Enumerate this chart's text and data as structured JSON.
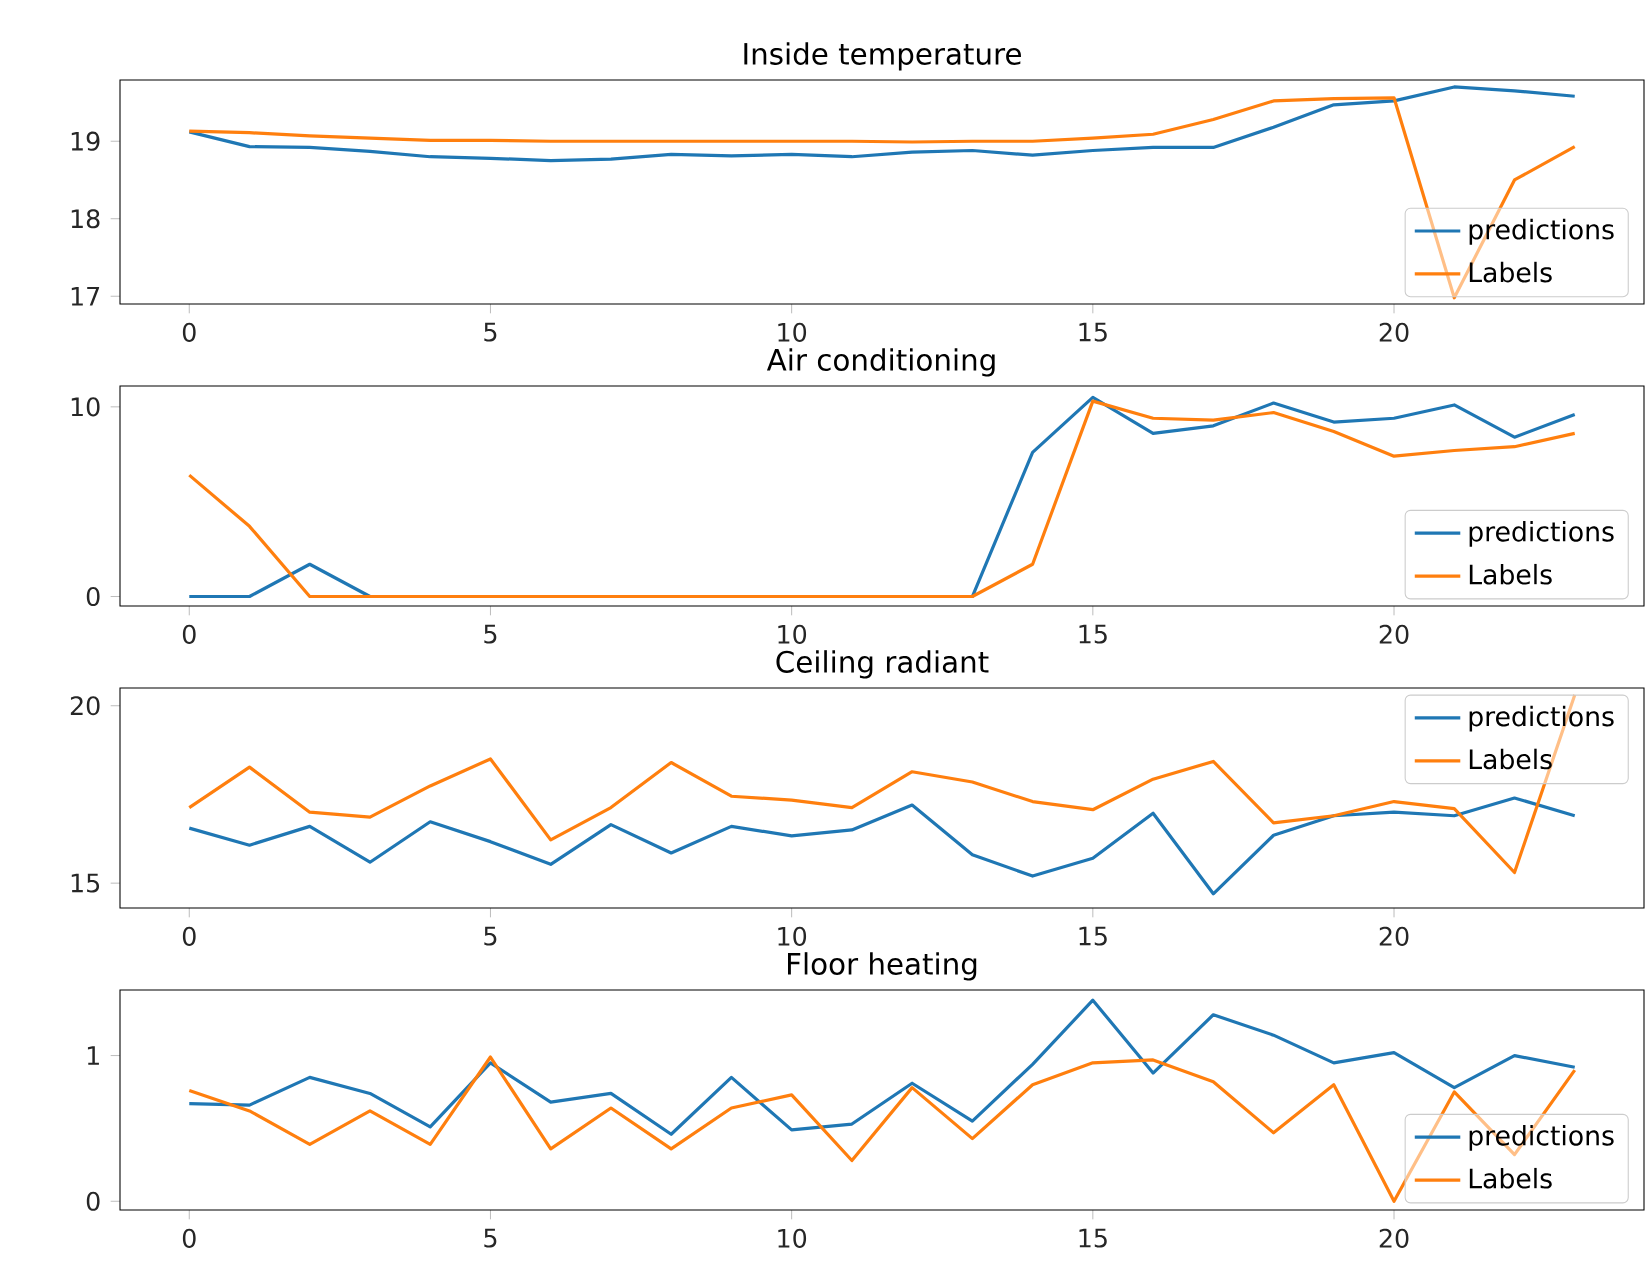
{
  "chart_data": [
    {
      "type": "line",
      "title": "Inside temperature",
      "x": [
        0,
        1,
        2,
        3,
        4,
        5,
        6,
        7,
        8,
        9,
        10,
        11,
        12,
        13,
        14,
        15,
        16,
        17,
        18,
        19,
        20,
        21,
        22,
        23
      ],
      "xlim": [
        -1.15,
        24.15
      ],
      "xticks": [
        0,
        5,
        10,
        15,
        20
      ],
      "ylim": [
        16.9,
        19.79
      ],
      "yticks": [
        17,
        18,
        19
      ],
      "legend": "bottom right",
      "line_style": "solid",
      "series": [
        {
          "name": "predictions",
          "color": "#1f77b4",
          "values": [
            19.12,
            18.93,
            18.92,
            18.87,
            18.8,
            18.78,
            18.75,
            18.77,
            18.83,
            18.81,
            18.83,
            18.8,
            18.86,
            18.88,
            18.82,
            18.88,
            18.92,
            18.92,
            19.18,
            19.47,
            19.52,
            19.7,
            19.65,
            19.58
          ]
        },
        {
          "name": "Labels",
          "color": "#ff7f0e",
          "values": [
            19.13,
            19.11,
            19.07,
            19.04,
            19.01,
            19.01,
            19.0,
            19.0,
            19.0,
            19.0,
            19.0,
            19.0,
            18.99,
            19.0,
            19.0,
            19.04,
            19.09,
            19.28,
            19.52,
            19.55,
            19.56,
            16.98,
            18.5,
            18.93
          ]
        }
      ]
    },
    {
      "type": "line",
      "title": "Air conditioning",
      "x": [
        0,
        1,
        2,
        3,
        4,
        5,
        6,
        7,
        8,
        9,
        10,
        11,
        12,
        13,
        14,
        15,
        16,
        17,
        18,
        19,
        20,
        21,
        22,
        23
      ],
      "xlim": [
        -1.15,
        24.15
      ],
      "xticks": [
        0,
        5,
        10,
        15,
        20
      ],
      "ylim": [
        -0.5,
        11.1
      ],
      "yticks": [
        0,
        10
      ],
      "legend": "bottom right",
      "line_style": "solid",
      "series": [
        {
          "name": "predictions",
          "color": "#1f77b4",
          "values": [
            0,
            0,
            1.7,
            0,
            0,
            0,
            0,
            0,
            0,
            0,
            0,
            0,
            0,
            0,
            7.6,
            10.5,
            8.6,
            9.0,
            10.2,
            9.2,
            9.4,
            10.1,
            8.4,
            9.6
          ]
        },
        {
          "name": "Labels",
          "color": "#ff7f0e",
          "values": [
            6.4,
            3.7,
            0,
            0,
            0,
            0,
            0,
            0,
            0,
            0,
            0,
            0,
            0,
            0,
            1.7,
            10.3,
            9.4,
            9.3,
            9.7,
            8.7,
            7.4,
            7.7,
            7.9,
            8.6
          ]
        }
      ]
    },
    {
      "type": "line",
      "title": "Ceiling radiant",
      "x": [
        0,
        1,
        2,
        3,
        4,
        5,
        6,
        7,
        8,
        9,
        10,
        11,
        12,
        13,
        14,
        15,
        16,
        17,
        18,
        19,
        20,
        21,
        22,
        23
      ],
      "xlim": [
        -1.15,
        24.15
      ],
      "xticks": [
        0,
        5,
        10,
        15,
        20
      ],
      "ylim": [
        14.3,
        20.5
      ],
      "yticks": [
        15,
        20
      ],
      "legend": "top right",
      "line_style": "solid",
      "series": [
        {
          "name": "predictions",
          "color": "#1f77b4",
          "values": [
            16.55,
            16.07,
            16.6,
            15.59,
            16.73,
            16.17,
            15.53,
            16.65,
            15.85,
            16.6,
            16.33,
            16.5,
            17.2,
            15.8,
            15.2,
            15.7,
            16.97,
            14.7,
            16.35,
            16.9,
            17.0,
            16.9,
            17.4,
            16.9
          ]
        },
        {
          "name": "Labels",
          "color": "#ff7f0e",
          "values": [
            17.13,
            18.27,
            17.0,
            16.86,
            17.74,
            18.5,
            16.22,
            17.13,
            18.4,
            17.45,
            17.34,
            17.13,
            18.14,
            17.85,
            17.3,
            17.07,
            17.93,
            18.43,
            16.7,
            16.9,
            17.3,
            17.1,
            15.3,
            20.3
          ]
        }
      ]
    },
    {
      "type": "line",
      "title": "Floor heating",
      "x": [
        0,
        1,
        2,
        3,
        4,
        5,
        6,
        7,
        8,
        9,
        10,
        11,
        12,
        13,
        14,
        15,
        16,
        17,
        18,
        19,
        20,
        21,
        22,
        23
      ],
      "xlim": [
        -1.15,
        24.15
      ],
      "xticks": [
        0,
        5,
        10,
        15,
        20
      ],
      "ylim": [
        -0.06,
        1.45
      ],
      "yticks": [
        0,
        1
      ],
      "legend": "bottom right",
      "line_style": "solid",
      "series": [
        {
          "name": "predictions",
          "color": "#1f77b4",
          "values": [
            0.67,
            0.66,
            0.85,
            0.74,
            0.51,
            0.95,
            0.68,
            0.74,
            0.46,
            0.85,
            0.49,
            0.53,
            0.81,
            0.55,
            0.94,
            1.38,
            0.88,
            1.28,
            1.14,
            0.95,
            1.02,
            0.78,
            1.0,
            0.92
          ]
        },
        {
          "name": "Labels",
          "color": "#ff7f0e",
          "values": [
            0.76,
            0.62,
            0.39,
            0.62,
            0.39,
            0.99,
            0.36,
            0.64,
            0.36,
            0.64,
            0.73,
            0.28,
            0.78,
            0.43,
            0.8,
            0.95,
            0.97,
            0.82,
            0.47,
            0.8,
            0.0,
            0.75,
            0.32,
            0.9
          ]
        }
      ]
    }
  ]
}
